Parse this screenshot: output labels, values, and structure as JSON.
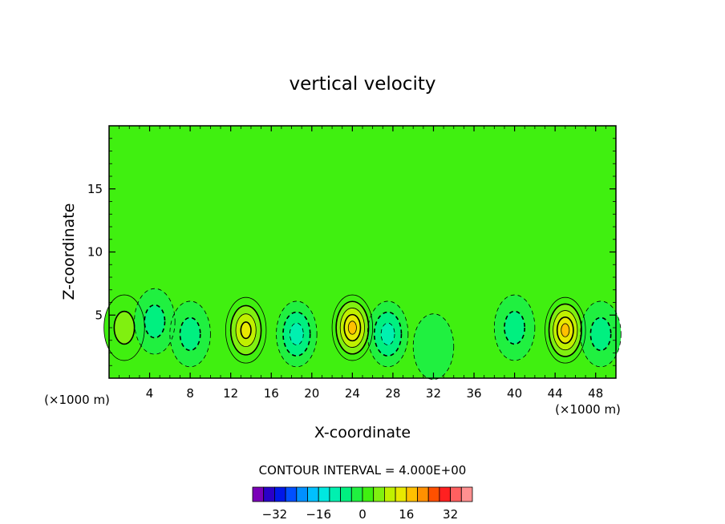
{
  "chart_data": {
    "type": "heatmap",
    "subtype": "filled-contour",
    "title": "vertical velocity",
    "xlabel": "X-coordinate",
    "ylabel": "Z-coordinate",
    "x_unit_left": "(×1000 m)",
    "x_unit_right": "(×1000 m)",
    "xlim": [
      0,
      50
    ],
    "ylim": [
      0,
      20
    ],
    "x_ticks": [
      4,
      8,
      12,
      16,
      20,
      24,
      28,
      32,
      36,
      40,
      44,
      48
    ],
    "y_ticks": [
      5,
      10,
      15
    ],
    "contour_interval_text": "CONTOUR INTERVAL = 4.000E+00",
    "contour_interval": 4,
    "colorbar": {
      "tick_values": [
        -32,
        -16,
        0,
        16,
        32
      ],
      "tick_labels": [
        "−32",
        "−16",
        "0",
        "16",
        "32"
      ],
      "colors": [
        "#7a00b8",
        "#2a00c8",
        "#0018e8",
        "#0050ff",
        "#0090ff",
        "#00c0ff",
        "#00e8e0",
        "#00f0b0",
        "#00f080",
        "#20f040",
        "#40f010",
        "#80f010",
        "#c0f000",
        "#e8e800",
        "#ffc000",
        "#ff9000",
        "#ff5000",
        "#ff2020",
        "#ff6060",
        "#ff9090"
      ],
      "range": [
        -40,
        40
      ]
    },
    "background_level": 0,
    "features": [
      {
        "kind": "updraft",
        "x": 1.5,
        "z": 4.0,
        "peak": 8
      },
      {
        "kind": "downdraft",
        "x": 4.5,
        "z": 4.5,
        "peak": -8
      },
      {
        "kind": "downdraft",
        "x": 8.0,
        "z": 3.5,
        "peak": -8
      },
      {
        "kind": "updraft",
        "x": 13.5,
        "z": 3.8,
        "peak": 16
      },
      {
        "kind": "downdraft",
        "x": 18.5,
        "z": 3.5,
        "peak": -12
      },
      {
        "kind": "updraft",
        "x": 24.0,
        "z": 4.0,
        "peak": 20
      },
      {
        "kind": "downdraft",
        "x": 27.5,
        "z": 3.5,
        "peak": -12
      },
      {
        "kind": "downdraft",
        "x": 32.0,
        "z": 2.5,
        "peak": -4
      },
      {
        "kind": "downdraft",
        "x": 40.0,
        "z": 4.0,
        "peak": -8
      },
      {
        "kind": "updraft",
        "x": 45.0,
        "z": 3.8,
        "peak": 20
      },
      {
        "kind": "downdraft",
        "x": 48.5,
        "z": 3.5,
        "peak": -8
      }
    ]
  }
}
